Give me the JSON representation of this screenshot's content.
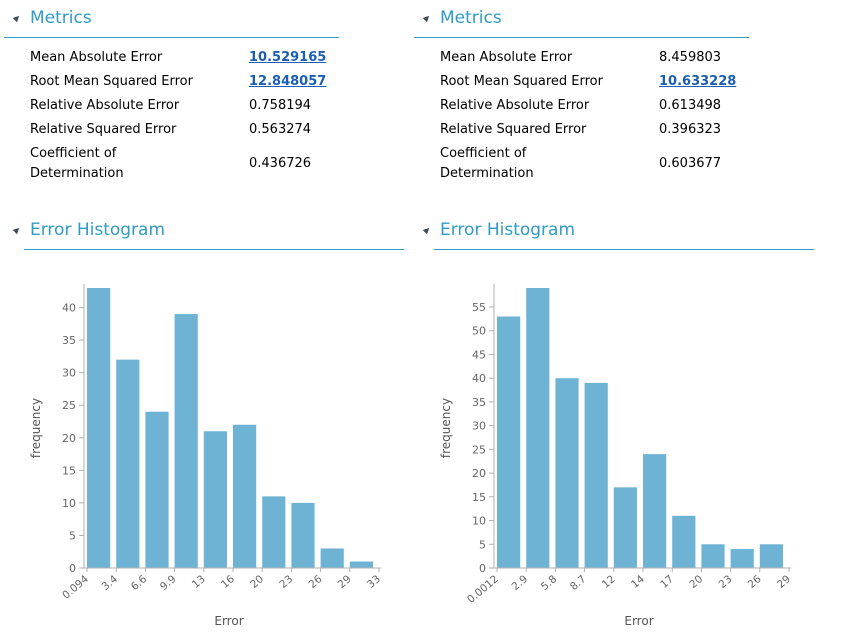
{
  "panels": [
    {
      "metrics_title": "Metrics",
      "hist_title": "Error Histogram",
      "metrics": [
        {
          "label": "Mean Absolute Error",
          "value": "10.529165",
          "link": true
        },
        {
          "label": "Root Mean Squared Error",
          "value": "12.848057",
          "link": true
        },
        {
          "label": "Relative Absolute Error",
          "value": "0.758194",
          "link": false
        },
        {
          "label": "Relative Squared Error",
          "value": "0.563274",
          "link": false
        },
        {
          "label": "Coefficient of Determination",
          "label_lines": [
            "Coefficient of",
            "Determination"
          ],
          "value": "0.436726",
          "link": false
        }
      ]
    },
    {
      "metrics_title": "Metrics",
      "hist_title": "Error Histogram",
      "metrics": [
        {
          "label": "Mean Absolute Error",
          "value": "8.459803",
          "link": false
        },
        {
          "label": "Root Mean Squared Error",
          "value": "10.633228",
          "link": true
        },
        {
          "label": "Relative Absolute Error",
          "value": "0.613498",
          "link": false
        },
        {
          "label": "Relative Squared Error",
          "value": "0.396323",
          "link": false
        },
        {
          "label": "Coefficient of Determination",
          "label_lines": [
            "Coefficient of",
            "Determination"
          ],
          "value": "0.603677",
          "link": false
        }
      ]
    }
  ],
  "chart_data": [
    {
      "type": "bar",
      "title": "Error Histogram",
      "xlabel": "Error",
      "ylabel": "frequency",
      "x_tick_labels": [
        "0.094",
        "3.4",
        "6.6",
        "9.9",
        "13",
        "16",
        "20",
        "23",
        "26",
        "29",
        "33"
      ],
      "values": [
        43,
        32,
        24,
        39,
        21,
        22,
        11,
        10,
        3,
        1
      ],
      "ylim": [
        0,
        43
      ],
      "y_ticks": [
        0,
        5,
        10,
        15,
        20,
        25,
        30,
        35,
        40
      ],
      "bar_color": "#6fb3d4",
      "grid": false
    },
    {
      "type": "bar",
      "title": "Error Histogram",
      "xlabel": "Error",
      "ylabel": "frequency",
      "x_tick_labels": [
        "0.0012",
        "2.9",
        "5.8",
        "8.7",
        "12",
        "14",
        "17",
        "20",
        "23",
        "26",
        "29"
      ],
      "values": [
        53,
        59,
        40,
        39,
        17,
        24,
        11,
        5,
        4,
        5
      ],
      "ylim": [
        0,
        59
      ],
      "y_ticks": [
        0,
        5,
        10,
        15,
        20,
        25,
        30,
        35,
        40,
        45,
        50,
        55
      ],
      "bar_color": "#6fb3d4",
      "grid": false
    }
  ]
}
